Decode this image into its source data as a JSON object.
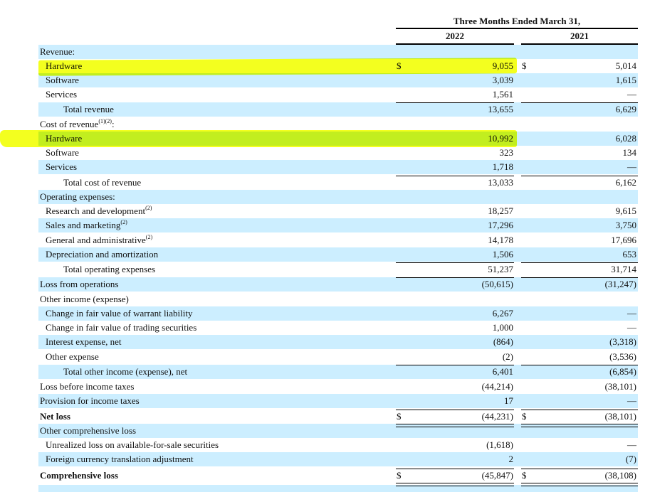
{
  "header": {
    "period": "Three Months Ended March 31,",
    "year1": "2022",
    "year2": "2021"
  },
  "rows": [
    {
      "label": "Revenue:",
      "v1": "",
      "v2": "",
      "d1": "",
      "d2": ""
    },
    {
      "label": "Hardware",
      "v1": "9,055",
      "v2": "5,014",
      "d1": "$",
      "d2": "$"
    },
    {
      "label": "Software",
      "v1": "3,039",
      "v2": "1,615",
      "d1": "",
      "d2": ""
    },
    {
      "label": "Services",
      "v1": "1,561",
      "v2": "—",
      "d1": "",
      "d2": ""
    },
    {
      "label": "Total revenue",
      "v1": "13,655",
      "v2": "6,629",
      "d1": "",
      "d2": ""
    },
    {
      "label": "Cost of revenue",
      "sup": "(1)(2)",
      "suffix": ":",
      "v1": "",
      "v2": "",
      "d1": "",
      "d2": ""
    },
    {
      "label": "Hardware",
      "v1": "10,992",
      "v2": "6,028",
      "d1": "",
      "d2": ""
    },
    {
      "label": "Software",
      "v1": "323",
      "v2": "134",
      "d1": "",
      "d2": ""
    },
    {
      "label": "Services",
      "v1": "1,718",
      "v2": "—",
      "d1": "",
      "d2": ""
    },
    {
      "label": "Total cost of revenue",
      "v1": "13,033",
      "v2": "6,162",
      "d1": "",
      "d2": ""
    },
    {
      "label": "Operating expenses:",
      "v1": "",
      "v2": "",
      "d1": "",
      "d2": ""
    },
    {
      "label": "Research and development",
      "sup": "(2)",
      "v1": "18,257",
      "v2": "9,615",
      "d1": "",
      "d2": ""
    },
    {
      "label": "Sales and marketing",
      "sup": "(2)",
      "v1": "17,296",
      "v2": "3,750",
      "d1": "",
      "d2": ""
    },
    {
      "label": "General and administrative",
      "sup": "(2)",
      "v1": "14,178",
      "v2": "17,696",
      "d1": "",
      "d2": ""
    },
    {
      "label": "Depreciation and amortization",
      "v1": "1,506",
      "v2": "653",
      "d1": "",
      "d2": ""
    },
    {
      "label": "Total operating expenses",
      "v1": "51,237",
      "v2": "31,714",
      "d1": "",
      "d2": ""
    },
    {
      "label": "Loss from operations",
      "v1": "(50,615)",
      "v2": "(31,247)",
      "d1": "",
      "d2": ""
    },
    {
      "label": "Other income (expense)",
      "v1": "",
      "v2": "",
      "d1": "",
      "d2": ""
    },
    {
      "label": "Change in fair value of warrant liability",
      "v1": "6,267",
      "v2": "—",
      "d1": "",
      "d2": ""
    },
    {
      "label": "Change in fair value of trading securities",
      "v1": "1,000",
      "v2": "—",
      "d1": "",
      "d2": ""
    },
    {
      "label": "Interest expense, net",
      "v1": "(864)",
      "v2": "(3,318)",
      "d1": "",
      "d2": ""
    },
    {
      "label": "Other expense",
      "v1": "(2)",
      "v2": "(3,536)",
      "d1": "",
      "d2": ""
    },
    {
      "label": "Total other income (expense), net",
      "v1": "6,401",
      "v2": "(6,854)",
      "d1": "",
      "d2": ""
    },
    {
      "label": "Loss before income taxes",
      "v1": "(44,214)",
      "v2": "(38,101)",
      "d1": "",
      "d2": ""
    },
    {
      "label": "Provision for income taxes",
      "v1": "17",
      "v2": "—",
      "d1": "",
      "d2": ""
    },
    {
      "label": "Net loss",
      "v1": "(44,231)",
      "v2": "(38,101)",
      "d1": "$",
      "d2": "$"
    },
    {
      "label": "Other comprehensive loss",
      "v1": "",
      "v2": "",
      "d1": "",
      "d2": ""
    },
    {
      "label": "Unrealized loss on available-for-sale securities",
      "v1": "(1,618)",
      "v2": "—",
      "d1": "",
      "d2": ""
    },
    {
      "label": "Foreign currency translation adjustment",
      "v1": "2",
      "v2": "(7)",
      "d1": "",
      "d2": ""
    },
    {
      "label": "Comprehensive loss",
      "v1": "(45,847)",
      "v2": "(38,108)",
      "d1": "$",
      "d2": "$"
    }
  ],
  "colors": {
    "row_shade": "#cceeff",
    "highlight": "#f2ff00"
  }
}
